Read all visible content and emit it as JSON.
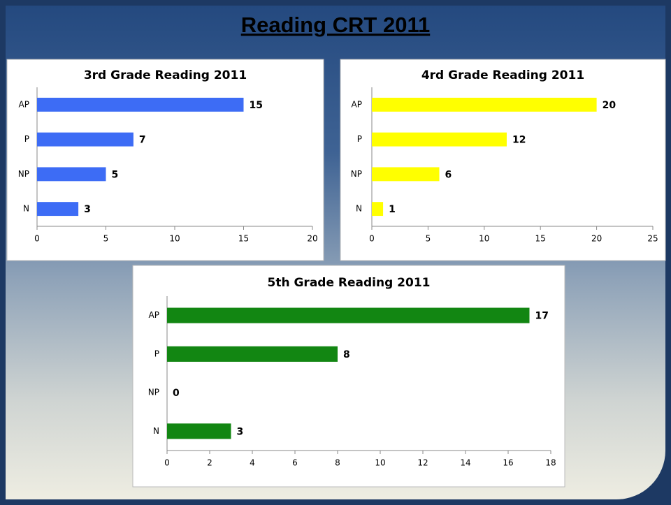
{
  "title": "Reading CRT 2011",
  "chart_data": [
    {
      "type": "bar",
      "orientation": "horizontal",
      "title": "3rd Grade Reading 2011",
      "categories": [
        "AP",
        "P",
        "NP",
        "N"
      ],
      "values": [
        15,
        7,
        5,
        3
      ],
      "color": "#3d6cf5",
      "xlim": [
        0,
        20
      ],
      "xticks": [
        0,
        5,
        10,
        15,
        20
      ]
    },
    {
      "type": "bar",
      "orientation": "horizontal",
      "title": "4rd Grade Reading 2011",
      "categories": [
        "AP",
        "P",
        "NP",
        "N"
      ],
      "values": [
        20,
        12,
        6,
        1
      ],
      "color": "#ffff00",
      "xlim": [
        0,
        25
      ],
      "xticks": [
        0,
        5,
        10,
        15,
        20,
        25
      ]
    },
    {
      "type": "bar",
      "orientation": "horizontal",
      "title": "5th Grade Reading 2011",
      "categories": [
        "AP",
        "P",
        "NP",
        "N"
      ],
      "values": [
        17,
        8,
        0,
        3
      ],
      "color": "#128612",
      "xlim": [
        0,
        18
      ],
      "xticks": [
        0,
        2,
        4,
        6,
        8,
        10,
        12,
        14,
        16,
        18
      ]
    }
  ]
}
